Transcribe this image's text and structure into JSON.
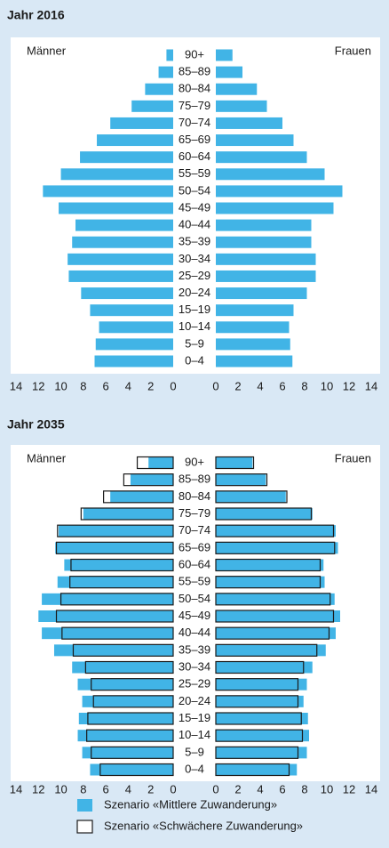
{
  "chart_data": [
    {
      "type": "pyramid",
      "title": "Jahr 2016",
      "left_label": "Männer",
      "right_label": "Frauen",
      "categories": [
        "90+",
        "85–89",
        "80–84",
        "75–79",
        "70–74",
        "65–69",
        "60–64",
        "55–59",
        "50–54",
        "45–49",
        "40–44",
        "35–39",
        "30–34",
        "25–29",
        "20–24",
        "15–19",
        "10–14",
        "5–9",
        "0–4"
      ],
      "xlim": [
        0,
        14
      ],
      "xticks": [
        0,
        2,
        4,
        6,
        8,
        10,
        12,
        14
      ],
      "series": [
        {
          "color": "#41b4e6",
          "style": "filled",
          "left": [
            0.6,
            1.3,
            2.5,
            3.7,
            5.6,
            6.8,
            8.3,
            10.0,
            11.6,
            10.2,
            8.7,
            9.0,
            9.4,
            9.3,
            8.2,
            7.4,
            6.6,
            6.9,
            7.0
          ],
          "right": [
            1.5,
            2.4,
            3.7,
            4.6,
            6.0,
            7.0,
            8.2,
            9.8,
            11.4,
            10.6,
            8.6,
            8.6,
            9.0,
            9.0,
            8.2,
            7.0,
            6.6,
            6.7,
            6.9
          ]
        }
      ]
    },
    {
      "type": "pyramid",
      "title": "Jahr 2035",
      "left_label": "Männer",
      "right_label": "Frauen",
      "categories": [
        "90+",
        "85–89",
        "80–84",
        "75–79",
        "70–74",
        "65–69",
        "60–64",
        "55–59",
        "50–54",
        "45–49",
        "40–44",
        "35–39",
        "30–34",
        "25–29",
        "20–24",
        "15–19",
        "10–14",
        "5–9",
        "0–4"
      ],
      "xlim": [
        0,
        14
      ],
      "xticks": [
        0,
        2,
        4,
        6,
        8,
        10,
        12,
        14
      ],
      "series": [
        {
          "name": "Szenario «Mittlere Zuwanderung»",
          "color": "#41b4e6",
          "style": "filled",
          "left": [
            2.2,
            3.8,
            5.6,
            8.0,
            10.2,
            10.5,
            9.7,
            10.3,
            11.7,
            12.0,
            11.7,
            10.6,
            9.0,
            8.5,
            8.1,
            8.4,
            8.5,
            8.1,
            7.4
          ],
          "right": [
            3.3,
            4.5,
            6.3,
            8.7,
            10.8,
            11.0,
            9.7,
            9.8,
            10.7,
            11.2,
            10.8,
            9.9,
            8.7,
            8.2,
            7.9,
            8.3,
            8.4,
            8.2,
            7.3
          ]
        },
        {
          "name": "Szenario «Schwächere Zuwanderung»",
          "color": "#1a1a1a",
          "style": "outline",
          "left": [
            3.2,
            4.4,
            6.2,
            8.2,
            10.3,
            10.4,
            9.1,
            9.2,
            10.0,
            10.4,
            9.9,
            8.9,
            7.8,
            7.3,
            7.1,
            7.6,
            7.7,
            7.3,
            6.5
          ],
          "right": [
            3.4,
            4.6,
            6.4,
            8.6,
            10.6,
            10.7,
            9.4,
            9.4,
            10.3,
            10.6,
            10.2,
            9.1,
            7.9,
            7.4,
            7.4,
            7.7,
            7.8,
            7.4,
            6.6
          ]
        }
      ]
    }
  ]
}
